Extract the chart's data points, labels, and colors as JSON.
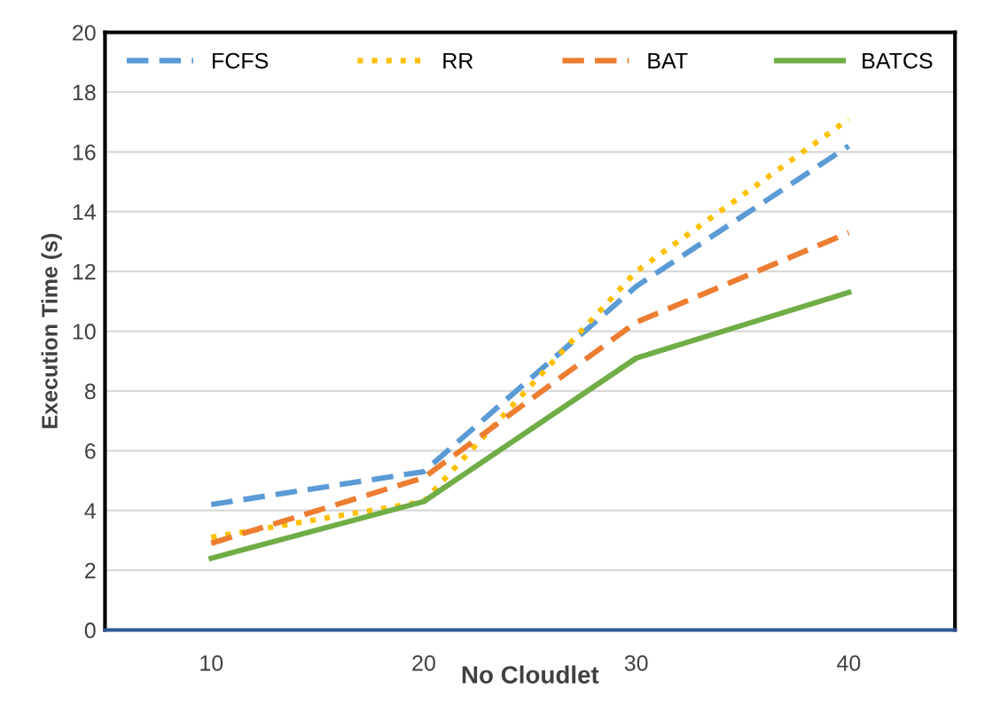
{
  "chart_data": {
    "type": "line",
    "xlabel": "No Cloudlet",
    "ylabel": "Execution Time (s)",
    "categories": [
      "10",
      "20",
      "30",
      "40"
    ],
    "series": [
      {
        "name": "FCFS",
        "color": "#5b9bd5",
        "line_style": "dashed",
        "values": [
          4.2,
          5.3,
          11.5,
          16.2
        ]
      },
      {
        "name": "RR",
        "color": "#ffc000",
        "line_style": "dotted",
        "values": [
          3.1,
          4.3,
          12.0,
          17.1
        ]
      },
      {
        "name": "BAT",
        "color": "#ed7d31",
        "line_style": "dashed",
        "values": [
          2.9,
          5.1,
          10.3,
          13.3
        ]
      },
      {
        "name": "BATCS",
        "color": "#70ad47",
        "line_style": "solid",
        "values": [
          2.4,
          4.3,
          9.1,
          11.3
        ]
      }
    ],
    "ylim": [
      0,
      20
    ],
    "yticks": [
      0,
      2,
      4,
      6,
      8,
      10,
      12,
      14,
      16,
      18,
      20
    ],
    "grid": "y",
    "legend": "top",
    "marker": "none"
  }
}
